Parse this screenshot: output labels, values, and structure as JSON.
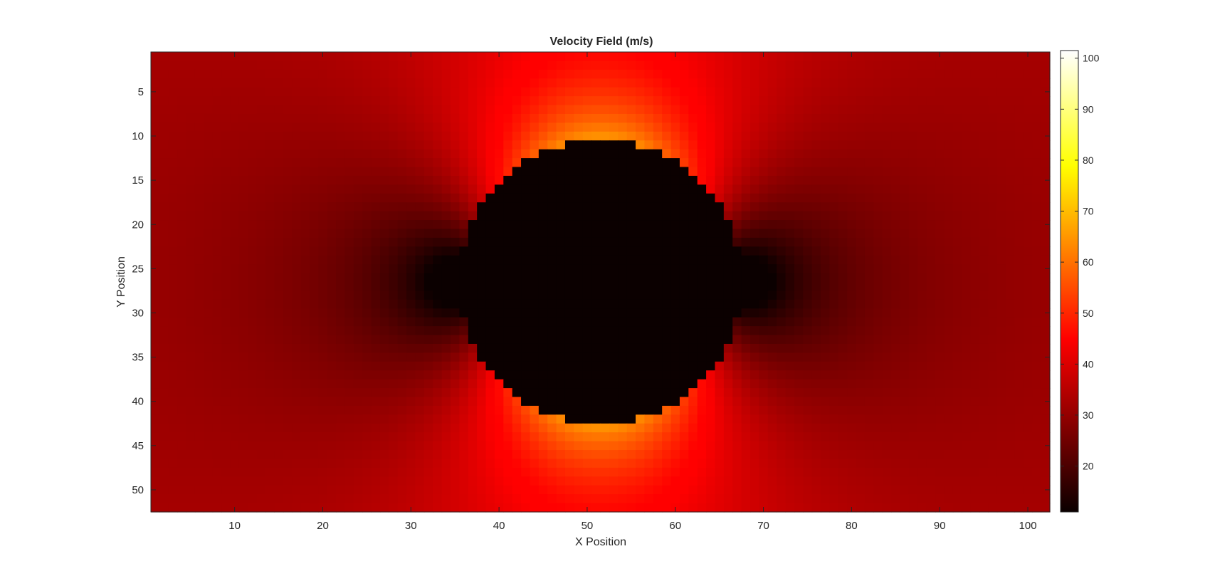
{
  "chart_data": {
    "type": "heatmap",
    "title": "Velocity Field (m/s)",
    "xlabel": "X Position",
    "ylabel": "Y Position",
    "x_range": [
      1,
      102
    ],
    "y_range": [
      1,
      52
    ],
    "y_reversed": true,
    "x_ticks": [
      10,
      20,
      30,
      40,
      50,
      60,
      70,
      80,
      90,
      100
    ],
    "y_ticks": [
      5,
      10,
      15,
      20,
      25,
      30,
      35,
      40,
      45,
      50
    ],
    "colormap": "hot",
    "colorbar": {
      "range": [
        11,
        101.5
      ],
      "ticks": [
        20,
        30,
        40,
        50,
        60,
        70,
        80,
        90,
        100
      ]
    },
    "field": {
      "description": "Potential flow around a cylinder",
      "free_stream_velocity": 33,
      "obstacle_center": [
        51.5,
        26.5
      ],
      "obstacle_radius": 16,
      "obstacle_velocity": 11,
      "max_velocity": 101.5
    },
    "grid": false
  }
}
